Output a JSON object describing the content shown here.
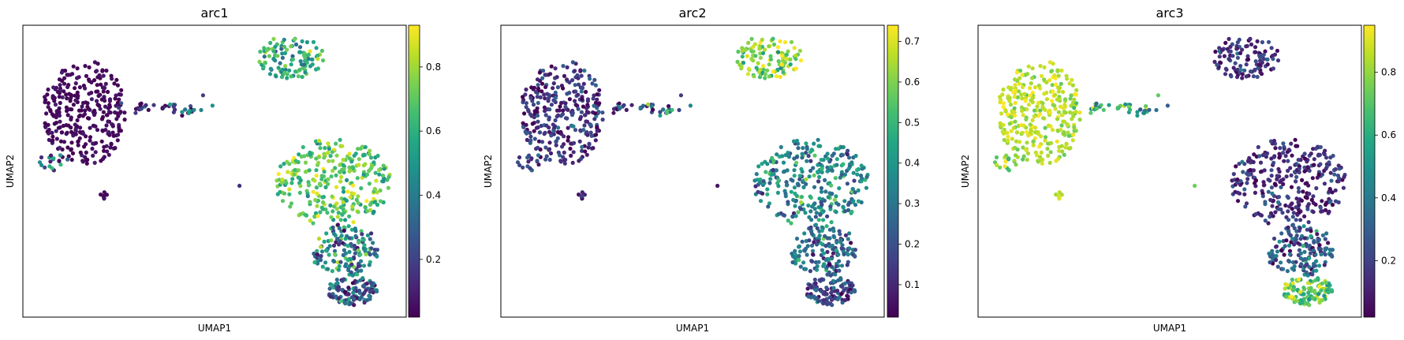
{
  "chart_data": [
    {
      "type": "scatter",
      "title": "arc1",
      "xlabel": "UMAP1",
      "ylabel": "UMAP2",
      "colorbar": {
        "ticks": [
          0.2,
          0.4,
          0.6,
          0.8
        ],
        "range": [
          0.02,
          0.93
        ],
        "colormap": "viridis"
      },
      "regions": [
        {
          "name": "left-blob",
          "value_mean": 0.04,
          "value_spread": 0.03
        },
        {
          "name": "left-blob-lower",
          "value_mean": 0.35,
          "value_spread": 0.15
        },
        {
          "name": "tail",
          "value_mean": 0.12,
          "value_spread": 0.1
        },
        {
          "name": "tail-end",
          "value_mean": 0.45,
          "value_spread": 0.1
        },
        {
          "name": "small-cluster",
          "value_mean": 0.05,
          "value_spread": 0.03
        },
        {
          "name": "top-cluster",
          "value_mean": 0.6,
          "value_spread": 0.15
        },
        {
          "name": "big-upper",
          "value_mean": 0.7,
          "value_spread": 0.12
        },
        {
          "name": "big-lower",
          "value_mean": 0.45,
          "value_spread": 0.18
        },
        {
          "name": "big-bottom",
          "value_mean": 0.3,
          "value_spread": 0.15
        },
        {
          "name": "isolated",
          "value_mean": 0.15,
          "value_spread": 0.05
        }
      ]
    },
    {
      "type": "scatter",
      "title": "arc2",
      "xlabel": "UMAP1",
      "ylabel": "UMAP2",
      "colorbar": {
        "ticks": [
          0.1,
          0.2,
          0.3,
          0.4,
          0.5,
          0.6,
          0.7
        ],
        "range": [
          0.02,
          0.74
        ],
        "colormap": "viridis"
      },
      "regions": [
        {
          "name": "left-blob",
          "value_mean": 0.13,
          "value_spread": 0.08
        },
        {
          "name": "left-blob-lower",
          "value_mean": 0.15,
          "value_spread": 0.08
        },
        {
          "name": "tail",
          "value_mean": 0.2,
          "value_spread": 0.1
        },
        {
          "name": "tail-end",
          "value_mean": 0.4,
          "value_spread": 0.1
        },
        {
          "name": "small-cluster",
          "value_mean": 0.1,
          "value_spread": 0.05
        },
        {
          "name": "top-cluster",
          "value_mean": 0.6,
          "value_spread": 0.1
        },
        {
          "name": "big-upper",
          "value_mean": 0.35,
          "value_spread": 0.12
        },
        {
          "name": "big-lower",
          "value_mean": 0.28,
          "value_spread": 0.1
        },
        {
          "name": "big-bottom",
          "value_mean": 0.18,
          "value_spread": 0.08
        },
        {
          "name": "isolated",
          "value_mean": 0.15,
          "value_spread": 0.05
        }
      ]
    },
    {
      "type": "scatter",
      "title": "arc3",
      "xlabel": "UMAP1",
      "ylabel": "UMAP2",
      "colorbar": {
        "ticks": [
          0.2,
          0.4,
          0.6,
          0.8
        ],
        "range": [
          0.02,
          0.95
        ],
        "colormap": "viridis"
      },
      "regions": [
        {
          "name": "left-blob",
          "value_mean": 0.85,
          "value_spread": 0.06
        },
        {
          "name": "left-blob-lower",
          "value_mean": 0.75,
          "value_spread": 0.1
        },
        {
          "name": "tail",
          "value_mean": 0.65,
          "value_spread": 0.2
        },
        {
          "name": "tail-end",
          "value_mean": 0.4,
          "value_spread": 0.1
        },
        {
          "name": "small-cluster",
          "value_mean": 0.85,
          "value_spread": 0.04
        },
        {
          "name": "top-cluster",
          "value_mean": 0.15,
          "value_spread": 0.1
        },
        {
          "name": "big-upper",
          "value_mean": 0.15,
          "value_spread": 0.1
        },
        {
          "name": "big-lower",
          "value_mean": 0.3,
          "value_spread": 0.15
        },
        {
          "name": "big-bottom",
          "value_mean": 0.72,
          "value_spread": 0.12
        },
        {
          "name": "isolated",
          "value_mean": 0.75,
          "value_spread": 0.05
        }
      ]
    }
  ]
}
